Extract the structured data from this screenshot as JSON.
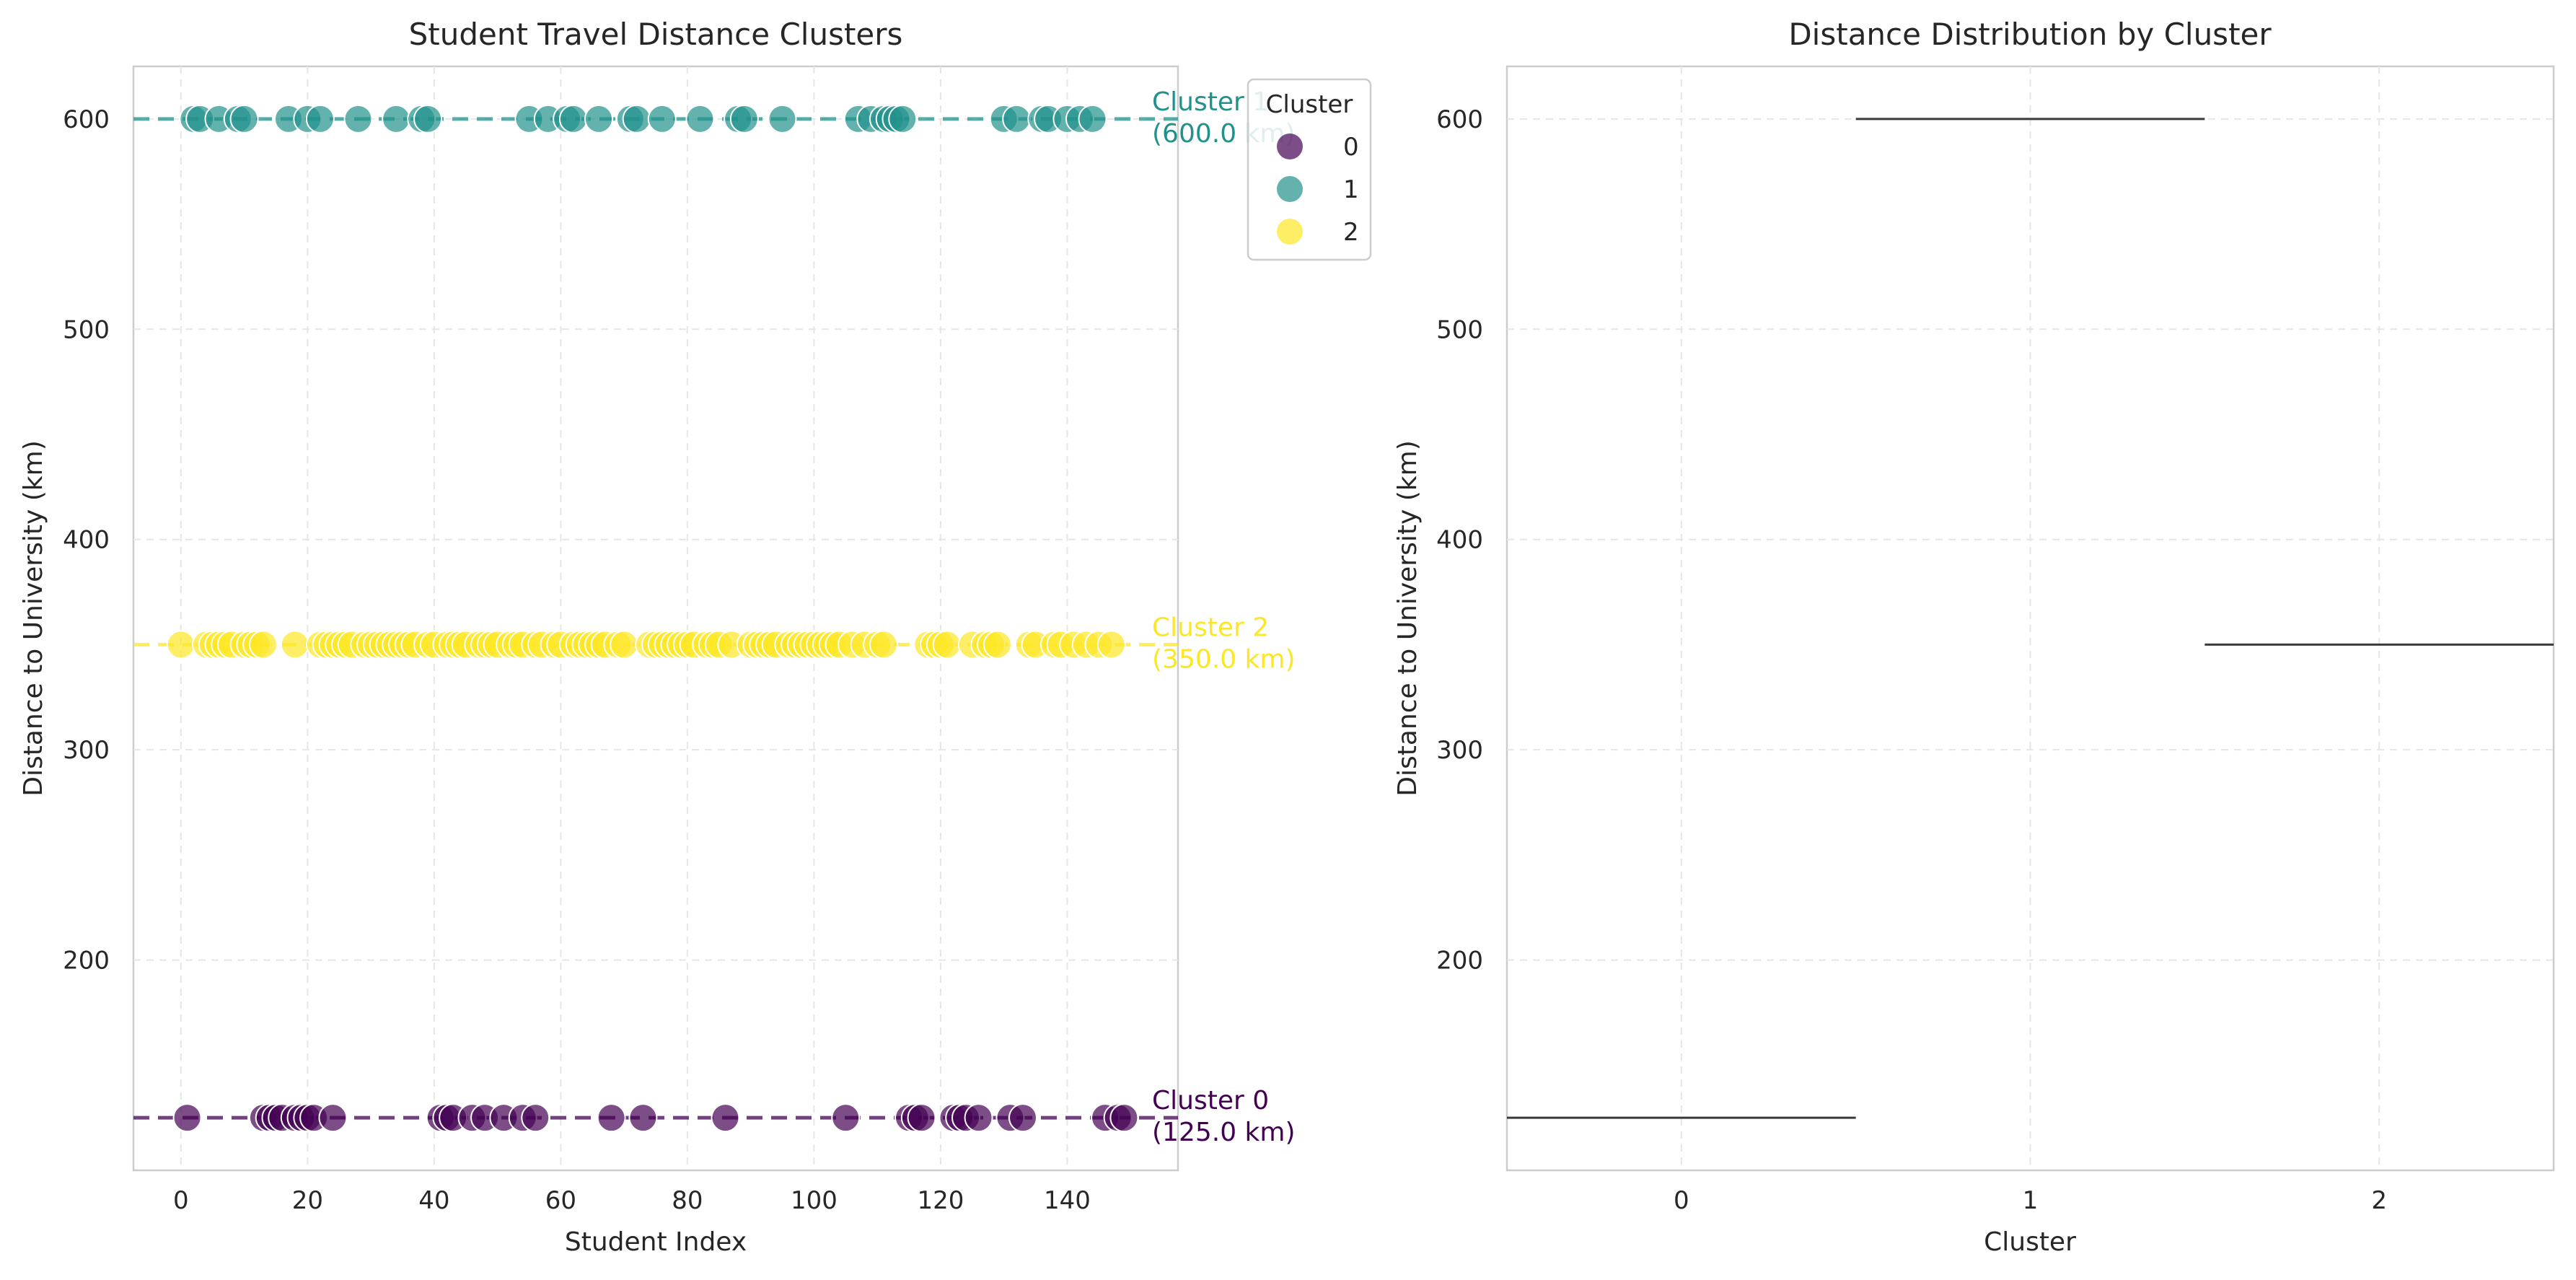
{
  "chart_data": [
    {
      "type": "scatter",
      "title": "Student Travel Distance Clusters",
      "xlabel": "Student Index",
      "ylabel": "Distance to University (km)",
      "xlim": [
        -7.5,
        157.5
      ],
      "ylim": [
        100,
        625
      ],
      "xticks": [
        0,
        20,
        40,
        60,
        80,
        100,
        120,
        140
      ],
      "yticks": [
        200,
        300,
        400,
        500,
        600
      ],
      "grid": true,
      "legend": {
        "title": "Cluster",
        "placement": "top-right",
        "entries": [
          "0",
          "1",
          "2"
        ]
      },
      "colors": {
        "0": "#440154",
        "1": "#21918c",
        "2": "#fde725"
      },
      "series": [
        {
          "name": "0",
          "y": 125,
          "x": [
            1,
            13,
            14,
            15,
            16,
            18,
            19,
            20,
            21,
            24,
            41,
            42,
            43,
            46,
            48,
            51,
            54,
            56,
            68,
            73,
            86,
            105,
            115,
            116,
            117,
            122,
            123,
            124,
            126,
            131,
            133,
            146,
            148,
            149
          ]
        },
        {
          "name": "1",
          "y": 600,
          "x": [
            2,
            3,
            6,
            9,
            10,
            17,
            20,
            22,
            28,
            34,
            38,
            39,
            55,
            58,
            61,
            62,
            66,
            71,
            72,
            76,
            82,
            88,
            89,
            95,
            107,
            109,
            111,
            112,
            113,
            114,
            130,
            132,
            136,
            137,
            140,
            142,
            144
          ]
        },
        {
          "name": "2",
          "y": 350,
          "x": [
            0,
            4,
            5,
            6,
            7,
            8,
            10,
            11,
            12,
            13,
            18,
            22,
            23,
            24,
            25,
            26,
            27,
            29,
            30,
            31,
            32,
            33,
            34,
            35,
            36,
            37,
            39,
            40,
            42,
            43,
            44,
            45,
            47,
            48,
            49,
            50,
            52,
            53,
            54,
            56,
            57,
            59,
            60,
            62,
            63,
            64,
            65,
            66,
            67,
            69,
            70,
            74,
            75,
            76,
            77,
            78,
            79,
            80,
            81,
            83,
            84,
            85,
            87,
            90,
            91,
            92,
            93,
            94,
            96,
            97,
            98,
            99,
            100,
            101,
            102,
            103,
            104,
            106,
            108,
            110,
            111,
            118,
            119,
            120,
            121,
            125,
            127,
            128,
            129,
            134,
            135,
            138,
            139,
            141,
            143,
            145,
            147
          ]
        }
      ],
      "annotations": [
        {
          "cluster": "0",
          "lines": [
            "Cluster 0",
            "(125.0 km)"
          ],
          "y": 125
        },
        {
          "cluster": "1",
          "lines": [
            "Cluster 1",
            "(600.0 km)"
          ],
          "y": 600
        },
        {
          "cluster": "2",
          "lines": [
            "Cluster 2",
            "(350.0 km)"
          ],
          "y": 350
        }
      ]
    },
    {
      "type": "box",
      "title": "Distance Distribution by Cluster",
      "xlabel": "Cluster",
      "ylabel": "Distance to University (km)",
      "categories": [
        "0",
        "1",
        "2"
      ],
      "values": [
        125,
        600,
        350
      ],
      "ylim": [
        100,
        625
      ],
      "yticks": [
        200,
        300,
        400,
        500,
        600
      ],
      "grid": true
    }
  ]
}
